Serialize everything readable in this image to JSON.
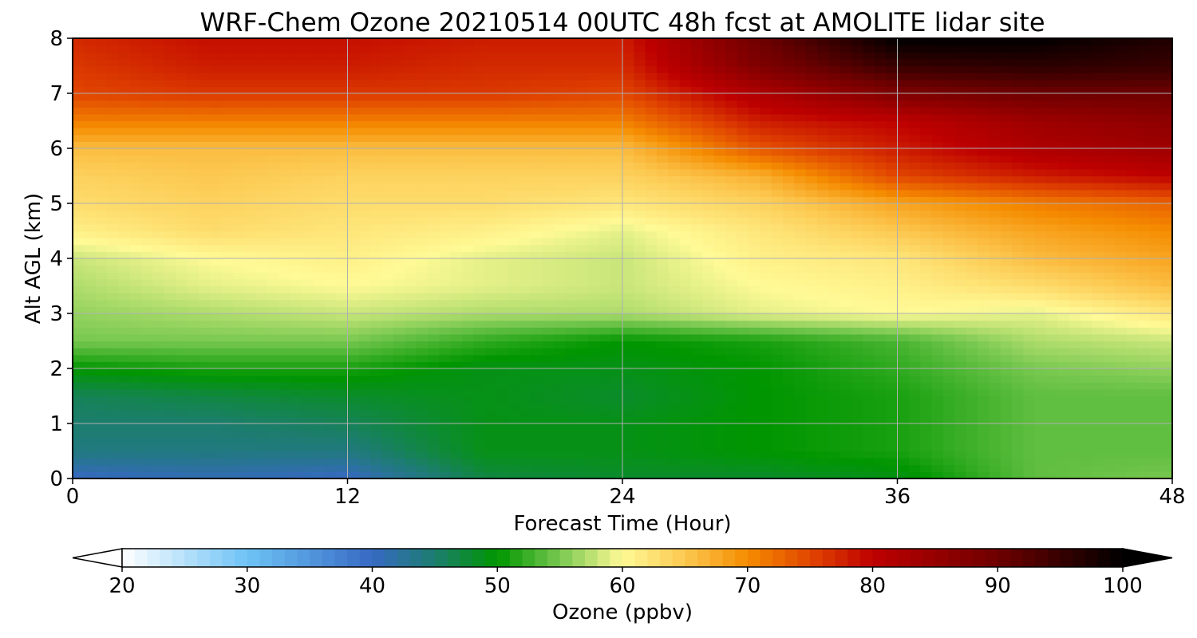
{
  "chart_data": {
    "type": "heatmap",
    "title": "WRF-Chem Ozone  20210514 00UTC 48h fcst at AMOLITE lidar site",
    "xlabel": "Forecast Time (Hour)",
    "ylabel": "Alt AGL (km)",
    "xlim": [
      0,
      48
    ],
    "ylim": [
      0,
      8
    ],
    "x_ticks": [
      "0",
      "12",
      "24",
      "36",
      "48"
    ],
    "y_ticks": [
      "0",
      "1",
      "2",
      "3",
      "4",
      "5",
      "6",
      "7",
      "8"
    ],
    "grid": true,
    "colorbar": {
      "label": "Ozone  (ppbv)",
      "range": [
        20,
        100
      ],
      "ticks": [
        "20",
        "30",
        "40",
        "50",
        "60",
        "70",
        "80",
        "90",
        "100"
      ],
      "extend": "both",
      "orientation": "horizontal",
      "placement": "bottom"
    },
    "x": [
      0,
      6,
      12,
      18,
      24,
      30,
      36,
      42,
      48
    ],
    "y": [
      0,
      0.5,
      1,
      1.5,
      2,
      2.5,
      3,
      3.5,
      4,
      4.5,
      5,
      5.5,
      6,
      6.5,
      7,
      7.5,
      8
    ],
    "z": [
      [
        40,
        41,
        40,
        47,
        48,
        48,
        49,
        54,
        55
      ],
      [
        44,
        44,
        44,
        49,
        49,
        50,
        51,
        54,
        54
      ],
      [
        45,
        45,
        46,
        49,
        49,
        50,
        51,
        54,
        54
      ],
      [
        46,
        47,
        48,
        49,
        48,
        50,
        51,
        54,
        54
      ],
      [
        50,
        51,
        51,
        49,
        49,
        50,
        52,
        55,
        56
      ],
      [
        55,
        55,
        55,
        52,
        50,
        51,
        53,
        57,
        58
      ],
      [
        56,
        57,
        58,
        57,
        57,
        59,
        60,
        59,
        62
      ],
      [
        57,
        59,
        60,
        59,
        58,
        60,
        61,
        63,
        66
      ],
      [
        58,
        60,
        61,
        59,
        58,
        61,
        62,
        66,
        68
      ],
      [
        61,
        63,
        62,
        61,
        59,
        62,
        65,
        68,
        70
      ],
      [
        63,
        64,
        63,
        63,
        62,
        64,
        68,
        71,
        73
      ],
      [
        64,
        65,
        64,
        64,
        64,
        67,
        75,
        78,
        80
      ],
      [
        66,
        66,
        66,
        66,
        66,
        74,
        78,
        82,
        84
      ],
      [
        71,
        71,
        71,
        71,
        71,
        78,
        80,
        84,
        86
      ],
      [
        75,
        76,
        76,
        76,
        75,
        82,
        88,
        90,
        90
      ],
      [
        76,
        78,
        78,
        77,
        77,
        88,
        95,
        96,
        95
      ],
      [
        77,
        79,
        79,
        78,
        78,
        90,
        100,
        100,
        97
      ]
    ]
  }
}
